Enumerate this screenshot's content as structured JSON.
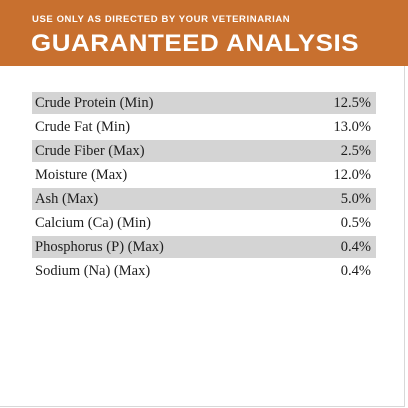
{
  "header": {
    "subtitle": "USE ONLY AS DIRECTED BY YOUR VETERINARIAN",
    "title": "GUARANTEED ANALYSIS"
  },
  "analysis": [
    {
      "name": "Crude Protein (Min)",
      "value": "12.5%"
    },
    {
      "name": "Crude Fat (Min)",
      "value": "13.0%"
    },
    {
      "name": "Crude Fiber (Max)",
      "value": "2.5%"
    },
    {
      "name": "Moisture (Max)",
      "value": "12.0%"
    },
    {
      "name": "Ash (Max)",
      "value": "5.0%"
    },
    {
      "name": "Calcium (Ca) (Min)",
      "value": "0.5%"
    },
    {
      "name": "Phosphorus (P) (Max)",
      "value": "0.4%"
    },
    {
      "name": "Sodium (Na) (Max)",
      "value": "0.4%"
    }
  ],
  "colors": {
    "header_bg": "#c8702f",
    "row_shade": "#d4d4d4",
    "text": "#1e1e1e"
  }
}
